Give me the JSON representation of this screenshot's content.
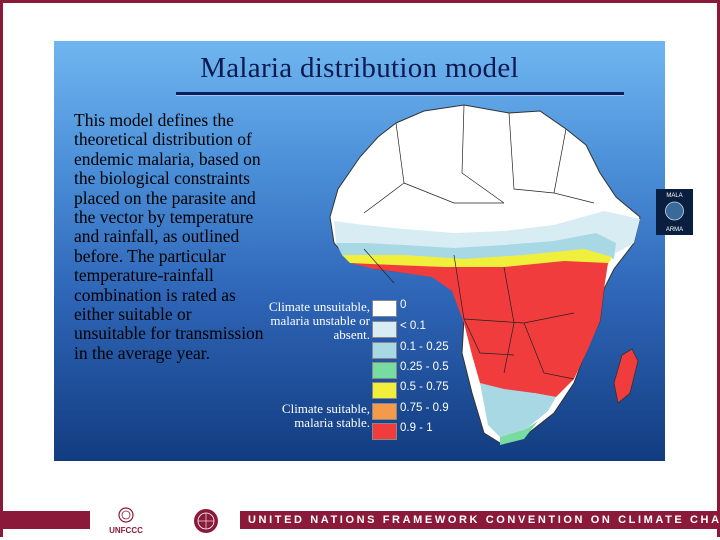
{
  "slide": {
    "title": "Malaria distribution model",
    "description": "This model defines the theoretical distribution of endemic malaria, based on the biological constraints placed on the parasite and the vector by temperature and rainfall, as outlined before. The particular temperature-rainfall combination is rated as either suitable or unsuitable for transmission in the average year."
  },
  "legend": {
    "caption_unsuitable": "Climate unsuitable, malaria unstable or absent.",
    "caption_suitable": "Climate suitable, malaria stable.",
    "items": [
      {
        "label": "0",
        "color": "#ffffff"
      },
      {
        "label": "< 0.1",
        "color": "#d8ecf4"
      },
      {
        "label": "0.1 - 0.25",
        "color": "#a8d8e4"
      },
      {
        "label": "0.25 - 0.5",
        "color": "#78dca0"
      },
      {
        "label": "0.5 - 0.75",
        "color": "#f0f03c"
      },
      {
        "label": "0.75 - 0.9",
        "color": "#f49a4a"
      },
      {
        "label": "0.9 - 1",
        "color": "#f03c3c"
      }
    ]
  },
  "logos": {
    "mara_top": "MALA",
    "mara_bottom": "ARMA",
    "unfccc": "UNFCCC"
  },
  "footer": {
    "text": "UNITED NATIONS FRAMEWORK CONVENTION ON CLIMATE CHANGE"
  },
  "colors": {
    "accent": "#8b1a3a",
    "panel_top": "#6fb6f0",
    "panel_bottom": "#123c80"
  }
}
